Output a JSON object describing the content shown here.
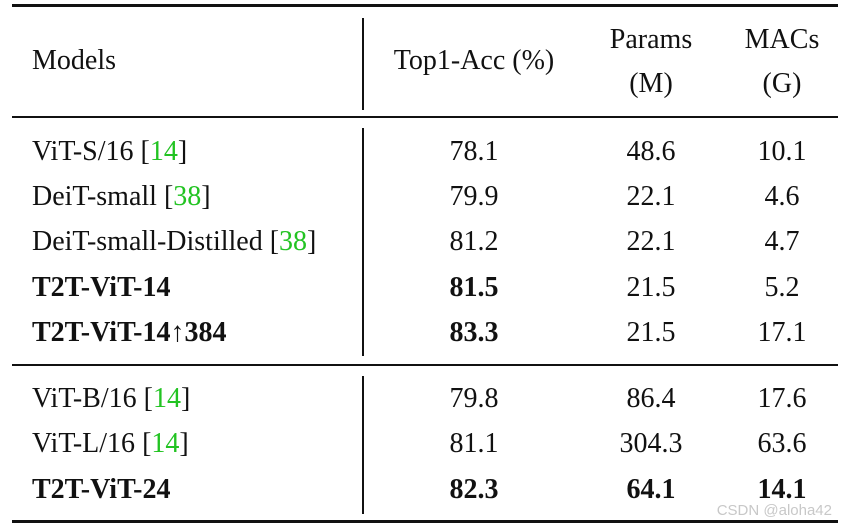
{
  "table": {
    "header": {
      "models": "Models",
      "top1": "Top1-Acc (%)",
      "params_line1": "Params",
      "params_line2": "(M)",
      "macs_line1": "MACs",
      "macs_line2": "(G)"
    },
    "groups": [
      {
        "rows": [
          {
            "name": "ViT-S/16 ",
            "cite": "14",
            "top1": "78.1",
            "params": "48.6",
            "macs": "10.1"
          },
          {
            "name": "DeiT-small ",
            "cite": "38",
            "top1": "79.9",
            "params": "22.1",
            "macs": "4.6"
          },
          {
            "name": "DeiT-small-Distilled ",
            "cite": "38",
            "top1": "81.2",
            "params": "22.1",
            "macs": "4.7"
          },
          {
            "name": "T2T-ViT-14",
            "top1": "81.5",
            "params": "21.5",
            "macs": "5.2"
          },
          {
            "name": "T2T-ViT-14↑384",
            "top1": "83.3",
            "params": "21.5",
            "macs": "17.1"
          }
        ]
      },
      {
        "rows": [
          {
            "name": "ViT-B/16 ",
            "cite": "14",
            "top1": "79.8",
            "params": "86.4",
            "macs": "17.6"
          },
          {
            "name": "ViT-L/16 ",
            "cite": "14",
            "top1": "81.1",
            "params": "304.3",
            "macs": "63.6"
          },
          {
            "name": "T2T-ViT-24",
            "top1": "82.3",
            "params": "64.1",
            "macs": "14.1"
          }
        ]
      }
    ]
  },
  "watermark": "CSDN @aloha42",
  "colors": {
    "citation": "#22c322",
    "text": "#111111",
    "watermark": "#c8c8c8"
  }
}
